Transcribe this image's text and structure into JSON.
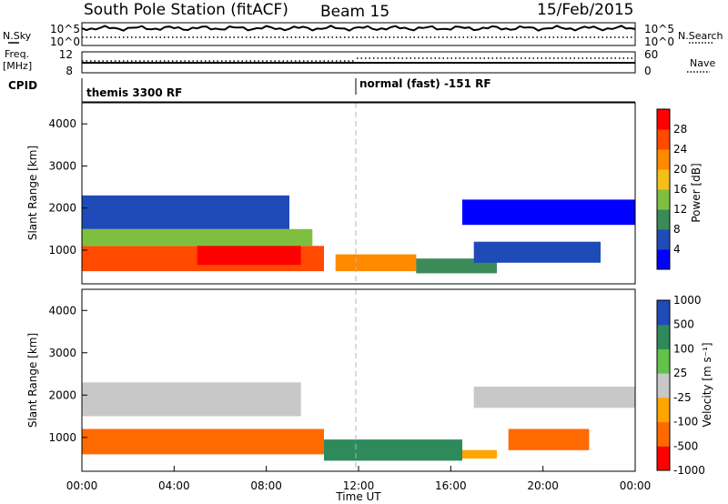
{
  "header": {
    "station": "South Pole Station (fitACF)",
    "beam": "Beam 15",
    "date": "15/Feb/2015"
  },
  "left_labels": {
    "nsky": "N.Sky",
    "freq": "Freq.",
    "freq_unit": "[MHz]",
    "cpid": "CPID"
  },
  "right_labels": {
    "nsearch": "N.Search",
    "nave": "Nave"
  },
  "noise_panel": {
    "left_ticks": [
      "10^5",
      "10^0"
    ],
    "right_ticks": [
      "10^5",
      "10^0"
    ]
  },
  "freq_panel": {
    "left_ticks": [
      "12",
      "8"
    ],
    "right_ticks": [
      "60",
      "0"
    ]
  },
  "cpid_panel": {
    "segments": [
      {
        "label": "themis 3300 RF",
        "start_hour": 0
      },
      {
        "label": "normal (fast) -151 RF",
        "start_hour": 12
      }
    ]
  },
  "colors": {
    "power": [
      "#0000ff",
      "#1f4bb8",
      "#3a8a5a",
      "#7fbf3f",
      "#f2c018",
      "#ff8a00",
      "#ff4a00",
      "#ff0000"
    ],
    "velocity": [
      "#ff0000",
      "#ff6a00",
      "#ffa500",
      "#c8c8c8",
      "#62c24a",
      "#2e8a5a",
      "#1f4bb8"
    ],
    "dash": "#b4b4b4"
  },
  "chart_data": [
    {
      "type": "heatmap",
      "title": "Power",
      "ylabel": "Slant Range [km]",
      "xlabel": "Time UT",
      "x_range_hours": [
        0,
        24
      ],
      "ylim": [
        200,
        4500
      ],
      "yticks": [
        "1000",
        "2000",
        "3000",
        "4000"
      ],
      "colorbar": {
        "label": "Power [dB]",
        "ticks": [
          "4",
          "8",
          "12",
          "16",
          "20",
          "24",
          "28"
        ],
        "range": [
          0,
          32
        ]
      },
      "echo_regions": [
        {
          "t0": 0.0,
          "t1": 10.5,
          "r0": 500,
          "r1": 1100,
          "level": 6
        },
        {
          "t0": 5.0,
          "t1": 9.5,
          "r0": 650,
          "r1": 1300,
          "level": 7
        },
        {
          "t0": 0.0,
          "t1": 10.0,
          "r0": 1100,
          "r1": 1500,
          "level": 3
        },
        {
          "t0": 0.0,
          "t1": 9.0,
          "r0": 1500,
          "r1": 2300,
          "level": 1
        },
        {
          "t0": 11.0,
          "t1": 14.5,
          "r0": 500,
          "r1": 900,
          "level": 5
        },
        {
          "t0": 14.5,
          "t1": 18.0,
          "r0": 450,
          "r1": 800,
          "level": 2
        },
        {
          "t0": 17.0,
          "t1": 22.5,
          "r0": 700,
          "r1": 1200,
          "level": 1
        },
        {
          "t0": 16.5,
          "t1": 24.0,
          "r0": 1600,
          "r1": 2200,
          "level": 0
        }
      ]
    },
    {
      "type": "heatmap",
      "title": "Velocity",
      "ylabel": "Slant Range [km]",
      "xlabel": "Time UT",
      "x_range_hours": [
        0,
        24
      ],
      "ylim": [
        200,
        4500
      ],
      "yticks": [
        "1000",
        "2000",
        "3000",
        "4000"
      ],
      "colorbar": {
        "label": "Velocity [m s⁻¹]",
        "ticks": [
          "1000",
          "500",
          "100",
          "25",
          "-25",
          "-100",
          "-500",
          "-1000"
        ],
        "range": [
          -1000,
          1000
        ]
      },
      "echo_regions": [
        {
          "t0": 0.0,
          "t1": 10.5,
          "r0": 600,
          "r1": 1200,
          "level": 1
        },
        {
          "t0": 0.0,
          "t1": 9.5,
          "r0": 1500,
          "r1": 2300,
          "level": 3
        },
        {
          "t0": 10.5,
          "t1": 16.5,
          "r0": 450,
          "r1": 950,
          "level": 5
        },
        {
          "t0": 16.5,
          "t1": 18.0,
          "r0": 500,
          "r1": 700,
          "level": 2
        },
        {
          "t0": 18.5,
          "t1": 22.0,
          "r0": 700,
          "r1": 1200,
          "level": 1
        },
        {
          "t0": 17.0,
          "t1": 24.0,
          "r0": 1700,
          "r1": 2200,
          "level": 3
        }
      ]
    }
  ],
  "time_axis": {
    "ticks": [
      "00:00",
      "04:00",
      "08:00",
      "12:00",
      "16:00",
      "20:00",
      "00:00"
    ],
    "label": "Time UT"
  }
}
